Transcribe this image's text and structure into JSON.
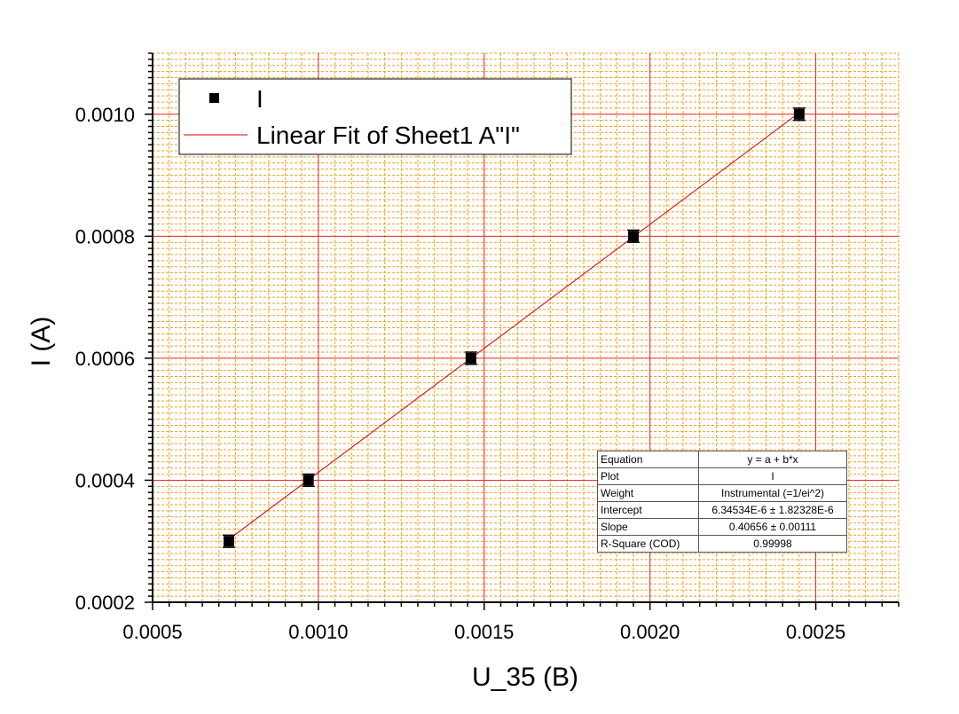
{
  "chart_data": {
    "type": "scatter",
    "title": "",
    "xlabel": "U_35 (B)",
    "ylabel": "I (A)",
    "xlim": [
      0.0005,
      0.00275
    ],
    "ylim": [
      0.0002,
      0.0011
    ],
    "x_ticks": [
      "0.0005",
      "0.0010",
      "0.0015",
      "0.0020",
      "0.0025"
    ],
    "y_ticks": [
      "0.0002",
      "0.0004",
      "0.0006",
      "0.0008",
      "0.0010"
    ],
    "grid": true,
    "legend_position": "top-left",
    "series": [
      {
        "name": "I",
        "mark": "square",
        "color": "#000000",
        "x": [
          0.00073,
          0.00097,
          0.00146,
          0.00195,
          0.00245
        ],
        "y": [
          0.0003,
          0.0004,
          0.0006,
          0.0008,
          0.001
        ],
        "y_error": [
          1e-05,
          1e-05,
          1e-05,
          1e-05,
          1e-05
        ]
      },
      {
        "name": "Linear Fit of Sheet1 A\"I\"",
        "mark": "line",
        "color": "#cc0000",
        "intercept": 6.34534e-06,
        "slope": 0.40656,
        "x_range": [
          0.00073,
          0.00245
        ]
      }
    ],
    "colors": {
      "major_grid": "#e03030",
      "minor_grid": "#f0a020",
      "fit_line": "#cc0000",
      "points": "#000000"
    }
  },
  "fit_table": [
    {
      "key": "Equation",
      "value": "y = a + b*x"
    },
    {
      "key": "Plot",
      "value": "I"
    },
    {
      "key": "Weight",
      "value": "Instrumental (=1/ei^2)"
    },
    {
      "key": "Intercept",
      "value": "6.34534E-6 ± 1.82328E-6"
    },
    {
      "key": "Slope",
      "value": "0.40656 ± 0.00111"
    },
    {
      "key": "R-Square (COD)",
      "value": "0.99998"
    }
  ]
}
